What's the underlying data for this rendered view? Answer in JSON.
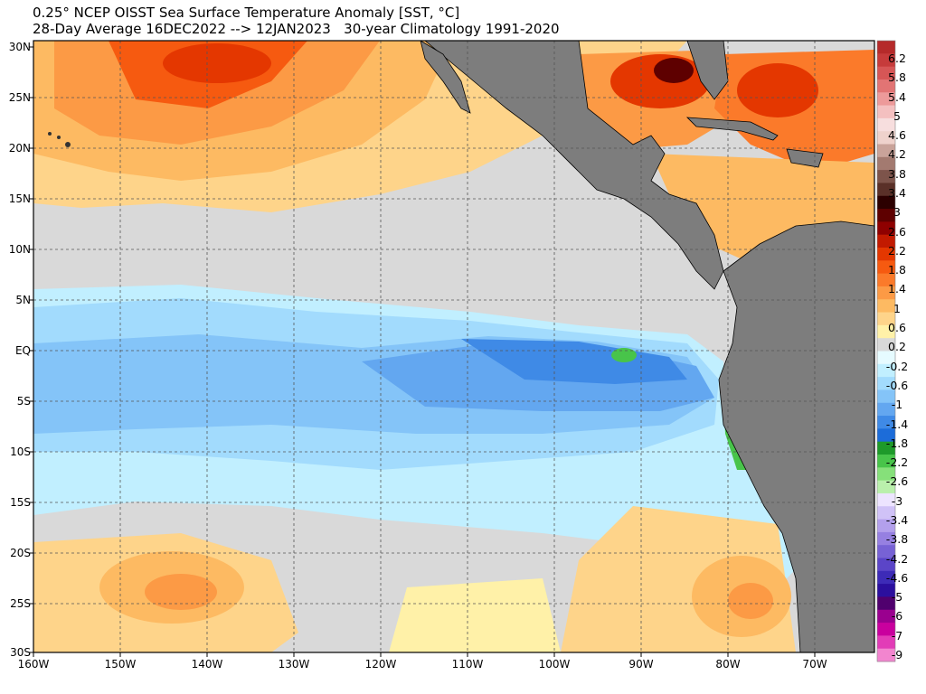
{
  "title_line1": "0.25° NCEP OISST Sea Surface Temperature Anomaly [SST, °C]",
  "title_line2": "28-Day Average 16DEC2022 --> 12JAN2023   30-year Climatology 1991-2020",
  "lat_labels": [
    "30N",
    "25N",
    "20N",
    "15N",
    "10N",
    "5N",
    "EQ",
    "5S",
    "10S",
    "15S",
    "20S",
    "25S",
    "30S"
  ],
  "lon_labels": [
    "160W",
    "150W",
    "140W",
    "130W",
    "120W",
    "110W",
    "100W",
    "90W",
    "80W",
    "70W"
  ],
  "colorbar": {
    "labels": [
      "6.2",
      "5.8",
      "5.4",
      "5",
      "4.6",
      "4.2",
      "3.8",
      "3.4",
      "3",
      "2.6",
      "2.2",
      "1.8",
      "1.4",
      "1",
      "0.6",
      "0.2",
      "-0.2",
      "-0.6",
      "-1",
      "-1.4",
      "-1.8",
      "-2.2",
      "-2.6",
      "-3",
      "-3.4",
      "-3.8",
      "-4.2",
      "-4.6",
      "-5",
      "-6",
      "-7",
      "-9"
    ],
    "colors": [
      "#b52a2a",
      "#c63b3b",
      "#d65656",
      "#e27474",
      "#ed9a9a",
      "#f4c0c0",
      "#f7dede",
      "#efd2cc",
      "#c9a39a",
      "#a37a70",
      "#7d544b",
      "#5a3028",
      "#2c0000",
      "#5e0000",
      "#8f0000",
      "#c21a00",
      "#e43700",
      "#f65a10",
      "#fb7a2a",
      "#fc9a45",
      "#fdba62",
      "#fed48a",
      "#fff1a8",
      "#d9d9d9",
      "#e6fbff",
      "#c1efff",
      "#a2dbfd",
      "#84c4f8",
      "#63a7f0",
      "#3f8ae6",
      "#1c6cd9",
      "#1e9a2a",
      "#48c44a",
      "#86e07a",
      "#baf0ac",
      "#ede4ff",
      "#d0c2f7",
      "#b3a0ec",
      "#9680e1",
      "#7762d5",
      "#5b45c8",
      "#3d2bb7",
      "#2b0f9e",
      "#50006e",
      "#9a008f",
      "#c9009e",
      "#e23cb7",
      "#f285cf"
    ]
  },
  "map_colors": {
    "land": "#7d7d7d",
    "coast": "#000000",
    "grid": "#555555",
    "neutral": "#d9d9d9"
  }
}
